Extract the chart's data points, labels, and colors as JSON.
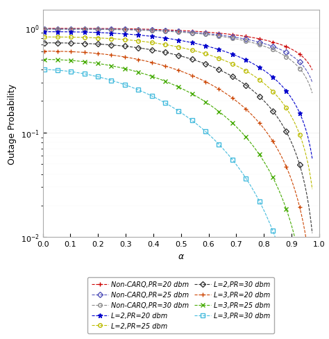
{
  "xlabel": "α",
  "ylabel": "Outage Probability",
  "xlim": [
    0,
    1.0
  ],
  "ylim": [
    0.01,
    1.2
  ],
  "series": [
    {
      "label": "Non-CARQ,PR=20 dbm",
      "color": "#cc0000",
      "linestyle": "-",
      "marker": "+",
      "markercolor": "#cc0000",
      "a": 0.98,
      "b": 0.45,
      "c": 2.5
    },
    {
      "label": "Non-CARQ,PR=25 dbm",
      "color": "#5555cc",
      "linestyle": "-",
      "marker": "D",
      "markercolor": "#5555cc",
      "a": 0.98,
      "b": 0.55,
      "c": 3.0
    },
    {
      "label": "Non-CARQ,PR=30 dbm",
      "color": "#777777",
      "linestyle": "-",
      "marker": "o",
      "markercolor": "#777777",
      "a": 0.98,
      "b": 0.65,
      "c": 3.8
    },
    {
      "label": "L=2,PR=20 dbm",
      "color": "#0000cc",
      "linestyle": "-",
      "marker": "*",
      "markercolor": "#0000cc",
      "a": 0.92,
      "b": 0.75,
      "c": 4.5
    },
    {
      "label": "L=2,PR=25 dbm",
      "color": "#bbbb00",
      "linestyle": "-",
      "marker": "o",
      "markercolor": "#bbbb00",
      "a": 0.88,
      "b": 0.82,
      "c": 5.5
    },
    {
      "label": "L=2,PR=30 dbm",
      "color": "#222222",
      "linestyle": "-",
      "marker": "D",
      "markercolor": "#222222",
      "a": 0.82,
      "b": 0.87,
      "c": 7.0
    },
    {
      "label": "L=3,PR=20 dbm",
      "color": "#cc4400",
      "linestyle": "-",
      "marker": "+",
      "markercolor": "#cc4400",
      "a": 0.72,
      "b": 0.88,
      "c": 8.0
    },
    {
      "label": "L=3,PR=25 dbm",
      "color": "#44aa00",
      "linestyle": "-",
      "marker": "x",
      "markercolor": "#44aa00",
      "a": 0.62,
      "b": 0.9,
      "c": 9.5
    },
    {
      "label": "L=3,PR=30 dbm",
      "color": "#44bbdd",
      "linestyle": "-",
      "marker": "s",
      "markercolor": "#44bbdd",
      "a": 0.52,
      "b": 0.92,
      "c": 12.0
    }
  ],
  "legend_fontsize": 7,
  "axis_fontsize": 9,
  "tick_fontsize": 8,
  "figsize": [
    4.74,
    4.89
  ],
  "dpi": 100
}
